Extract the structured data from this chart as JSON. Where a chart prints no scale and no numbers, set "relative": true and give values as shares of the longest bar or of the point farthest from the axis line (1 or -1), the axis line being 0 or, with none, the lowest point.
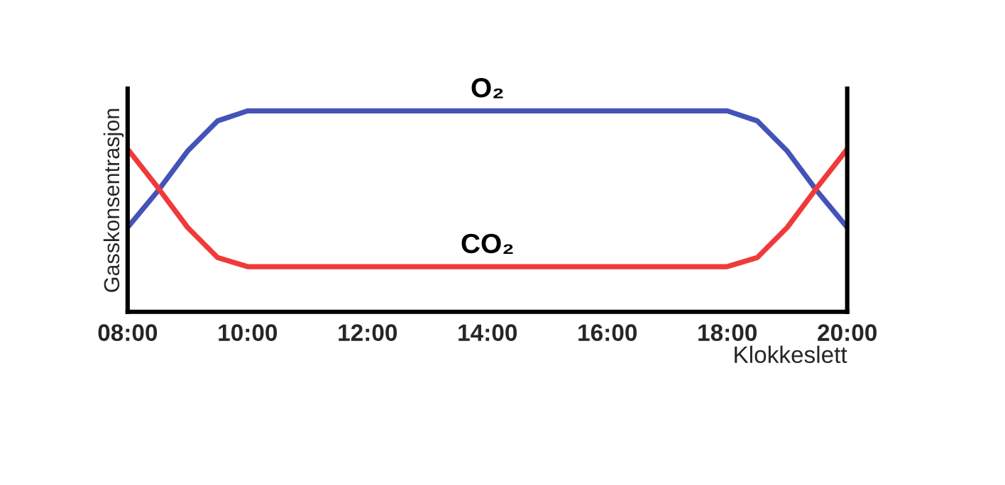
{
  "chart_data": {
    "type": "line",
    "relative": true,
    "ylabel": "Gasskonsentrasjon",
    "xlabel": "Klokkeslett",
    "xlim": [
      8,
      20
    ],
    "xticks": [
      {
        "value": 8,
        "label": "08:00"
      },
      {
        "value": 10,
        "label": "10:00"
      },
      {
        "value": 12,
        "label": "12:00"
      },
      {
        "value": 14,
        "label": "14:00"
      },
      {
        "value": 16,
        "label": "16:00"
      },
      {
        "value": 18,
        "label": "18:00"
      },
      {
        "value": 20,
        "label": "20:00"
      }
    ],
    "x": [
      8,
      8.5,
      9,
      9.5,
      10,
      18,
      18.5,
      19,
      19.5,
      20
    ],
    "series": [
      {
        "name": "O₂",
        "color": "#4453b8",
        "values": [
          0.42,
          0.6,
          0.8,
          0.95,
          1.0,
          1.0,
          0.95,
          0.8,
          0.6,
          0.42
        ]
      },
      {
        "name": "CO₂",
        "color": "#f03a3a",
        "values": [
          0.81,
          0.62,
          0.42,
          0.27,
          0.225,
          0.225,
          0.27,
          0.42,
          0.62,
          0.81
        ]
      }
    ],
    "legend": false,
    "grid": false,
    "marker": "none",
    "line_style": "solid"
  }
}
